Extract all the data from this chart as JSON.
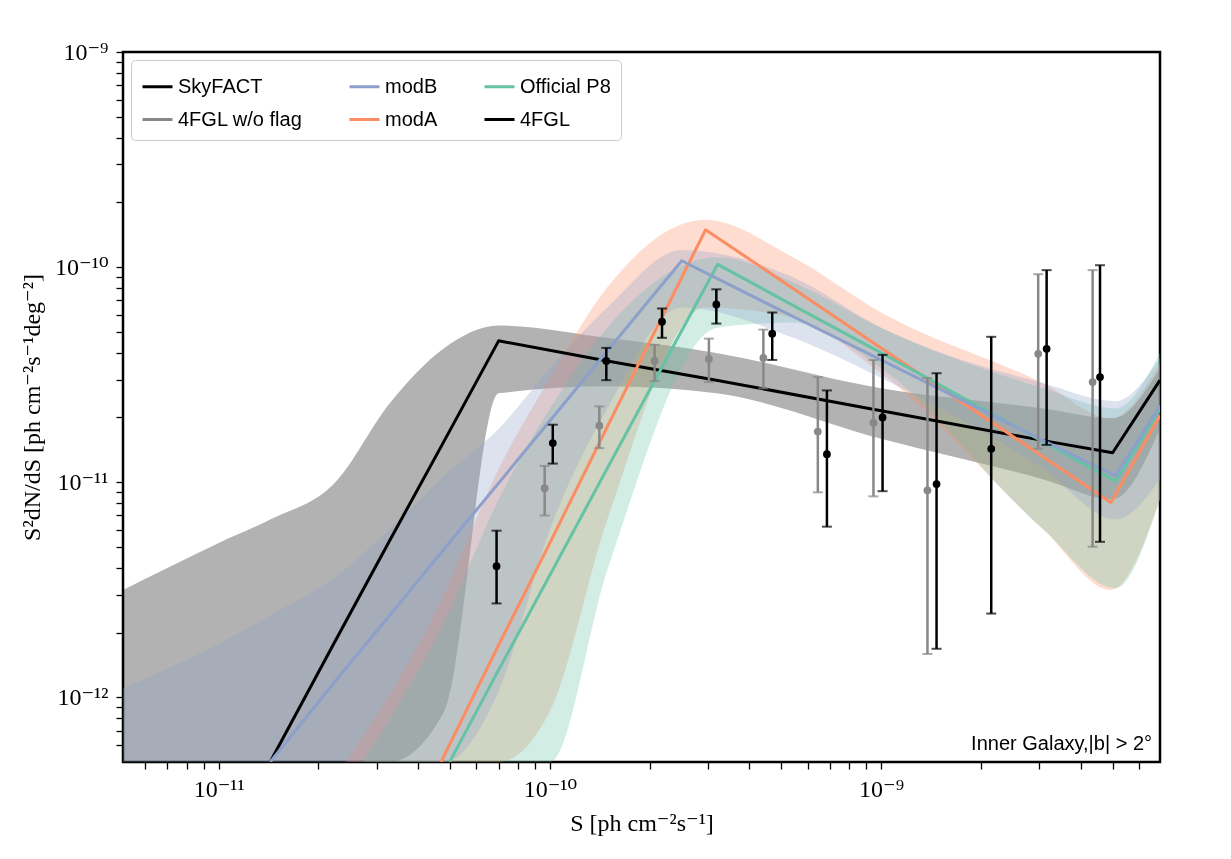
{
  "chart_data": {
    "type": "line",
    "xlabel": "S [ph cm⁻²s⁻¹]",
    "ylabel": "S²dN/dS [ph cm⁻²s⁻¹deg⁻²]",
    "log": "xy",
    "legend": "top left",
    "xlim": [
      5.14e-12,
      6.95e-09
    ],
    "ylim": [
      5e-13,
      1e-09
    ],
    "xticks": [
      {
        "value": 6e-12,
        "label": null
      },
      {
        "value": 7e-12,
        "label": null
      },
      {
        "value": 8e-12,
        "label": null
      },
      {
        "value": 9e-12,
        "label": null
      },
      {
        "value": 1e-11,
        "label": "10⁻¹¹"
      },
      {
        "value": 2e-11,
        "label": null
      },
      {
        "value": 3e-11,
        "label": null
      },
      {
        "value": 4e-11,
        "label": null
      },
      {
        "value": 5e-11,
        "label": null
      },
      {
        "value": 6e-11,
        "label": null
      },
      {
        "value": 7e-11,
        "label": null
      },
      {
        "value": 8e-11,
        "label": null
      },
      {
        "value": 9e-11,
        "label": null
      },
      {
        "value": 1e-10,
        "label": "10⁻¹⁰"
      },
      {
        "value": 2e-10,
        "label": null
      },
      {
        "value": 3e-10,
        "label": null
      },
      {
        "value": 4e-10,
        "label": null
      },
      {
        "value": 5e-10,
        "label": null
      },
      {
        "value": 6e-10,
        "label": null
      },
      {
        "value": 7e-10,
        "label": null
      },
      {
        "value": 8e-10,
        "label": null
      },
      {
        "value": 9e-10,
        "label": null
      },
      {
        "value": 1e-09,
        "label": "10⁻⁹"
      },
      {
        "value": 2e-09,
        "label": null
      },
      {
        "value": 3e-09,
        "label": null
      },
      {
        "value": 4e-09,
        "label": null
      },
      {
        "value": 5e-09,
        "label": null
      },
      {
        "value": 6e-09,
        "label": null
      }
    ],
    "yticks": [
      {
        "value": 6e-13,
        "label": null
      },
      {
        "value": 7e-13,
        "label": null
      },
      {
        "value": 8e-13,
        "label": null
      },
      {
        "value": 9e-13,
        "label": null
      },
      {
        "value": 1e-12,
        "label": "10⁻¹²"
      },
      {
        "value": 2e-12,
        "label": null
      },
      {
        "value": 3e-12,
        "label": null
      },
      {
        "value": 4e-12,
        "label": null
      },
      {
        "value": 5e-12,
        "label": null
      },
      {
        "value": 6e-12,
        "label": null
      },
      {
        "value": 7e-12,
        "label": null
      },
      {
        "value": 8e-12,
        "label": null
      },
      {
        "value": 9e-12,
        "label": null
      },
      {
        "value": 1e-11,
        "label": "10⁻¹¹"
      },
      {
        "value": 2e-11,
        "label": null
      },
      {
        "value": 3e-11,
        "label": null
      },
      {
        "value": 4e-11,
        "label": null
      },
      {
        "value": 5e-11,
        "label": null
      },
      {
        "value": 6e-11,
        "label": null
      },
      {
        "value": 7e-11,
        "label": null
      },
      {
        "value": 8e-11,
        "label": null
      },
      {
        "value": 9e-11,
        "label": null
      },
      {
        "value": 1e-10,
        "label": "10⁻¹⁰"
      },
      {
        "value": 2e-10,
        "label": null
      },
      {
        "value": 3e-10,
        "label": null
      },
      {
        "value": 4e-10,
        "label": null
      },
      {
        "value": 5e-10,
        "label": null
      },
      {
        "value": 6e-10,
        "label": null
      },
      {
        "value": 7e-10,
        "label": null
      },
      {
        "value": 8e-10,
        "label": null
      },
      {
        "value": 9e-10,
        "label": null
      },
      {
        "value": 1e-09,
        "label": "10⁻⁹"
      }
    ],
    "annotations": [
      "Inner Galaxy,|b| > 2°"
    ],
    "series": [
      {
        "name": "SkyFACT",
        "color": "#000000",
        "x": [
          5.14e-12,
          1e-11,
          1.43e-11,
          2.25e-11,
          3.28e-11,
          4.8e-11,
          7e-11,
          1.49e-10,
          3.18e-10,
          1e-09,
          3.09e-09,
          5e-09,
          6.95e-09
        ],
        "values": [
          null,
          null,
          5e-13,
          1.83e-12,
          5.34e-12,
          1.56e-11,
          4.54e-11,
          3.66e-11,
          2.98e-11,
          2.15e-11,
          1.56e-11,
          1.37e-11,
          2.98e-11
        ],
        "upper": [
          3.15e-12,
          5.22e-12,
          6.7e-12,
          1e-11,
          2.32e-11,
          4.21e-11,
          5.35e-11,
          4.69e-11,
          3.99e-11,
          2.73e-11,
          2.2e-11,
          1.98e-11,
          3.39e-11
        ],
        "lower": [
          5e-13,
          5e-13,
          5e-13,
          5e-13,
          5e-13,
          8.6e-13,
          2.59e-11,
          2.79e-11,
          2.59e-11,
          1.59e-11,
          1.03e-11,
          8.32e-12,
          1.77e-11
        ]
      },
      {
        "name": "modA",
        "color": "#fc8d62",
        "x": [
          2.43e-11,
          4.69e-11,
          7e-11,
          1e-10,
          1.49e-10,
          2.95e-10,
          5.42e-10,
          1e-09,
          3.09e-09,
          4.94e-09,
          6.95e-09
        ],
        "values": [
          null,
          5e-13,
          1.75e-12,
          5.22e-12,
          1.81e-11,
          1.49e-10,
          7.96e-11,
          4.21e-11,
          1.31e-11,
          8.05e-12,
          2.04e-11
        ],
        "upper": [
          5e-13,
          2.82e-12,
          1.15e-11,
          3.05e-11,
          8.05e-11,
          1.66e-10,
          1.11e-10,
          6.15e-11,
          2.88e-11,
          1.98e-11,
          3.58e-11
        ],
        "lower": [
          5e-13,
          5e-13,
          5e-13,
          8.6e-13,
          6.7e-12,
          6.49e-11,
          5.82e-11,
          3.21e-11,
          6.02e-12,
          3.15e-12,
          8.32e-12
        ]
      },
      {
        "name": "4FGL w/o flag",
        "type": "scatter",
        "marker": "circle",
        "color": "#888888",
        "x": [
          9.64e-11,
          1.41e-10,
          2.07e-10,
          3.02e-10,
          4.41e-10,
          6.44e-10,
          9.48e-10,
          1.38e-09,
          2.98e-09,
          4.35e-09
        ],
        "values": [
          9.37e-12,
          1.83e-11,
          3.66e-11,
          3.74e-11,
          3.78e-11,
          1.72e-11,
          1.89e-11,
          9.17e-12,
          3.95e-11,
          2.92e-11
        ],
        "errors": [
          [
            7e-12,
            1.19e-11
          ],
          [
            1.44e-11,
            2.25e-11
          ],
          [
            2.95e-11,
            4.35e-11
          ],
          [
            2.92e-11,
            4.65e-11
          ],
          [
            2.73e-11,
            5.12e-11
          ],
          [
            8.97e-12,
            3.08e-11
          ],
          [
            8.59e-12,
            3.7e-11
          ],
          [
            1.59e-12,
            3.05e-11
          ],
          [
            1.43e-11,
            9.27e-11
          ],
          [
            5.01e-12,
            9.68e-11
          ]
        ]
      },
      {
        "name": "Official P8",
        "color": "#66c2a5",
        "x": [
          2.72e-11,
          4.98e-11,
          7e-11,
          1e-10,
          1.49e-10,
          3.21e-10,
          5.42e-10,
          1e-09,
          3.09e-09,
          5.1e-09,
          6.95e-09
        ],
        "values": [
          null,
          5e-13,
          1.34e-12,
          3.7e-12,
          1.16e-11,
          1.03e-10,
          6.64e-11,
          3.99e-11,
          1.54e-11,
          1.01e-11,
          2.2e-11
        ],
        "upper": [
          5e-13,
          2.54e-12,
          8.32e-12,
          2.2e-11,
          5.23e-11,
          1.11e-10,
          8.51e-11,
          5.23e-11,
          2.73e-11,
          2.2e-11,
          3.99e-11
        ],
        "lower": [
          5e-13,
          5e-13,
          5e-13,
          5e-13,
          3.91e-12,
          5.23e-11,
          5.52e-11,
          3.39e-11,
          6.02e-12,
          3.21e-12,
          8.32e-12
        ]
      },
      {
        "name": "modB",
        "color": "#8da0cb",
        "x": [
          5.14e-12,
          1e-11,
          1.43e-11,
          2.25e-11,
          3.28e-11,
          4.8e-11,
          7e-11,
          1e-10,
          1.49e-10,
          2.5e-10,
          5.42e-10,
          1e-09,
          3.09e-09,
          5.1e-09,
          6.95e-09
        ],
        "values": [
          null,
          null,
          5e-13,
          1.19e-12,
          2.4e-12,
          4.9e-12,
          9.9e-12,
          1.93e-11,
          4.07e-11,
          1.07e-10,
          5.89e-11,
          3.7e-11,
          1.56e-11,
          1.07e-11,
          2.27e-11
        ],
        "upper": [
          1.1e-12,
          1.77e-12,
          2.4e-12,
          3.62e-12,
          6.02e-12,
          1.07e-11,
          1.77e-11,
          3.39e-11,
          6.49e-11,
          1.2e-10,
          8.97e-11,
          5.23e-11,
          2.88e-11,
          2.38e-11,
          3.78e-11
        ],
        "lower": [
          5e-13,
          5e-13,
          5e-13,
          5e-13,
          5e-13,
          5e-13,
          1.07e-12,
          6.02e-12,
          2.2e-11,
          6.49e-11,
          4.69e-11,
          3.05e-11,
          1.15e-11,
          6.7e-12,
          1.03e-11
        ]
      },
      {
        "name": "4FGL",
        "type": "scatter",
        "marker": "circle",
        "color": "#000000",
        "x": [
          6.9e-11,
          1.02e-10,
          1.48e-10,
          2.18e-10,
          3.18e-10,
          4.69e-10,
          6.86e-10,
          1.01e-09,
          1.47e-09,
          2.15e-09,
          3.16e-09,
          4.58e-09
        ],
        "values": [
          4.07e-12,
          1.52e-11,
          3.66e-11,
          5.57e-11,
          6.7e-11,
          4.9e-11,
          1.35e-11,
          2e-11,
          9.8e-12,
          1.43e-11,
          4.17e-11,
          3.08e-11
        ],
        "errors": [
          [
            2.73e-12,
            5.95e-12
          ],
          [
            1.22e-11,
            1.85e-11
          ],
          [
            2.98e-11,
            4.21e-11
          ],
          [
            4.69e-11,
            6.42e-11
          ],
          [
            5.46e-11,
            7.88e-11
          ],
          [
            3.7e-11,
            6.15e-11
          ],
          [
            6.21e-12,
            2.67e-11
          ],
          [
            9.08e-12,
            3.91e-11
          ],
          [
            1.68e-12,
            3.21e-11
          ],
          [
            2.45e-12,
            4.74e-11
          ],
          [
            1.49e-11,
            9.68e-11
          ],
          [
            5.28e-12,
            1.02e-10
          ]
        ]
      }
    ]
  }
}
